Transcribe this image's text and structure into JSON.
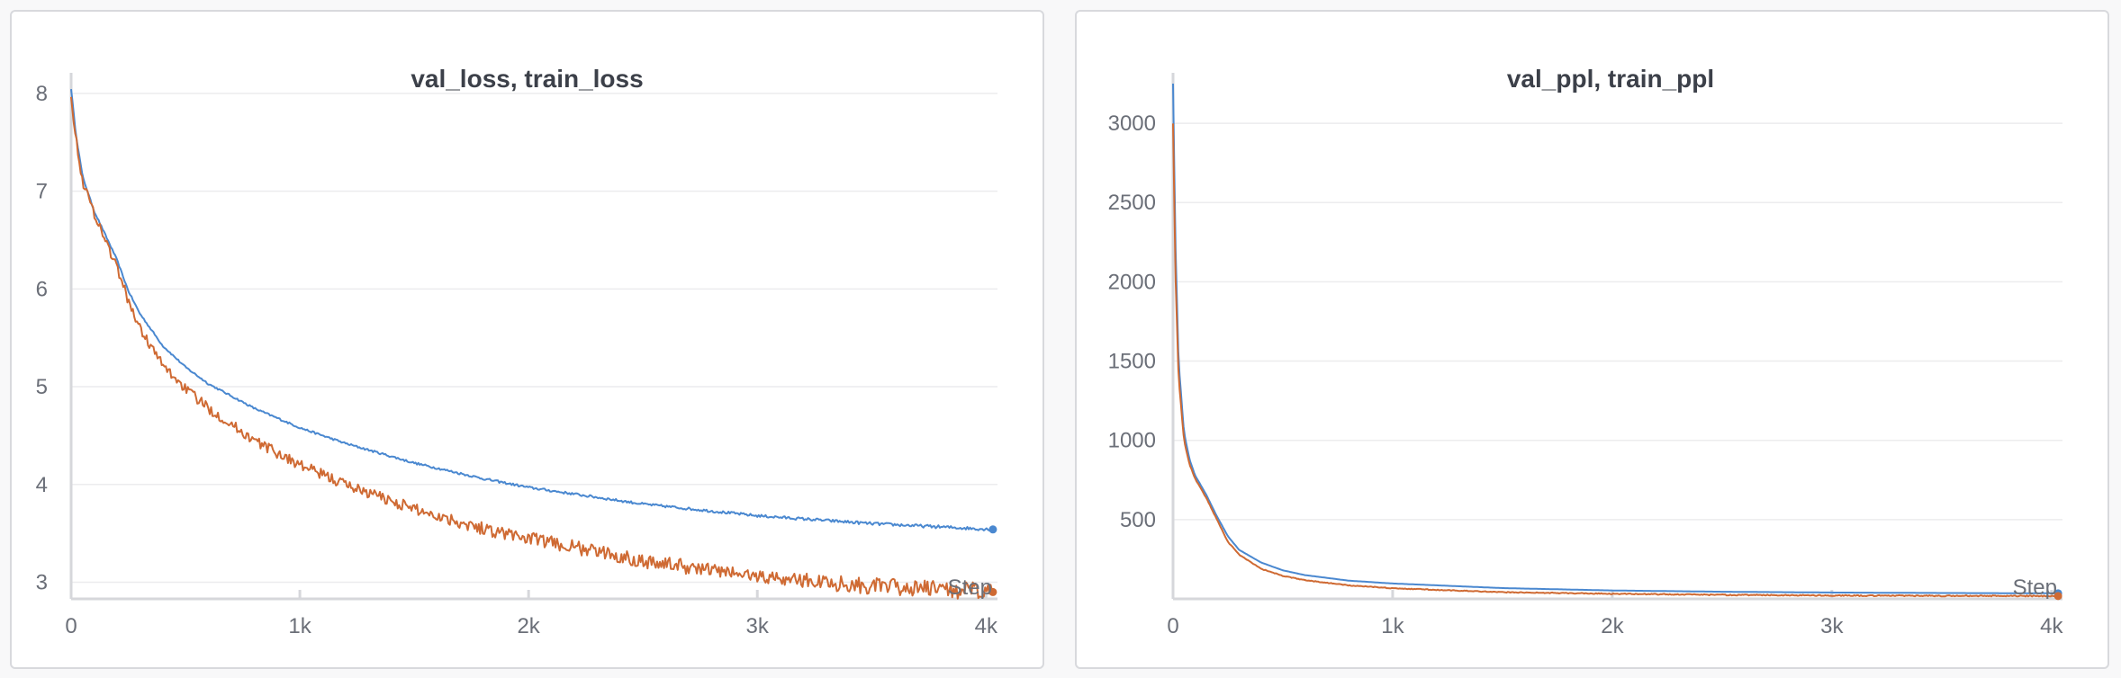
{
  "colors": {
    "val": "#4a88d0",
    "train": "#cf6a33"
  },
  "chart_data": [
    {
      "type": "line",
      "title": "val_loss, train_loss",
      "xlabel": "Step",
      "ylabel": "",
      "xlim": [
        0,
        4050
      ],
      "ylim": [
        2.83,
        8.1
      ],
      "xticks": [
        0,
        1000,
        2000,
        3000,
        4000
      ],
      "xtick_labels": [
        "0",
        "1k",
        "2k",
        "3k",
        "4k"
      ],
      "yticks": [
        3,
        4,
        5,
        6,
        7,
        8
      ],
      "ytick_labels": [
        "3",
        "4",
        "5",
        "6",
        "7",
        "8"
      ],
      "grid": true,
      "legend": "none",
      "series": [
        {
          "name": "val_loss",
          "color": "#4a88d0",
          "noise": 0.008,
          "end_marker": true,
          "x": [
            0,
            20,
            50,
            100,
            150,
            200,
            250,
            300,
            400,
            500,
            600,
            800,
            1000,
            1200,
            1500,
            1800,
            2000,
            2500,
            3000,
            3500,
            4030
          ],
          "y": [
            8.05,
            7.6,
            7.15,
            6.8,
            6.55,
            6.3,
            5.98,
            5.75,
            5.42,
            5.2,
            5.03,
            4.78,
            4.58,
            4.42,
            4.22,
            4.06,
            3.97,
            3.8,
            3.68,
            3.6,
            3.54
          ]
        },
        {
          "name": "train_loss",
          "color": "#cf6a33",
          "noise": 0.045,
          "end_marker": true,
          "x": [
            0,
            20,
            50,
            100,
            150,
            200,
            250,
            300,
            400,
            500,
            600,
            800,
            1000,
            1200,
            1500,
            1800,
            2000,
            2500,
            3000,
            3500,
            4030
          ],
          "y": [
            8.0,
            7.55,
            7.1,
            6.78,
            6.5,
            6.22,
            5.88,
            5.6,
            5.22,
            4.98,
            4.78,
            4.45,
            4.2,
            4.0,
            3.75,
            3.55,
            3.45,
            3.22,
            3.06,
            2.96,
            2.9
          ]
        }
      ]
    },
    {
      "type": "line",
      "title": "val_ppl, train_ppl",
      "xlabel": "Step",
      "ylabel": "",
      "xlim": [
        0,
        4050
      ],
      "ylim": [
        0,
        3250
      ],
      "xticks": [
        0,
        1000,
        2000,
        3000,
        4000
      ],
      "xtick_labels": [
        "0",
        "1k",
        "2k",
        "3k",
        "4k"
      ],
      "yticks": [
        500,
        1000,
        1500,
        2000,
        2500,
        3000
      ],
      "ytick_labels": [
        "500",
        "1000",
        "1500",
        "2000",
        "2500",
        "3000"
      ],
      "grid": true,
      "legend": "none",
      "series": [
        {
          "name": "val_ppl",
          "color": "#4a88d0",
          "noise": 0,
          "end_marker": true,
          "x": [
            0,
            10,
            25,
            50,
            75,
            100,
            150,
            200,
            250,
            300,
            400,
            500,
            600,
            800,
            1000,
            1500,
            2000,
            2500,
            3000,
            3500,
            4030
          ],
          "y": [
            3250,
            2300,
            1500,
            1050,
            880,
            780,
            660,
            520,
            395,
            310,
            230,
            180,
            150,
            115,
            97,
            68,
            53,
            45,
            40,
            37,
            35
          ]
        },
        {
          "name": "train_ppl",
          "color": "#cf6a33",
          "noise": 2,
          "end_marker": true,
          "x": [
            0,
            10,
            25,
            50,
            75,
            100,
            150,
            200,
            250,
            300,
            400,
            500,
            600,
            800,
            1000,
            1500,
            2000,
            2500,
            3000,
            3500,
            4030
          ],
          "y": [
            3000,
            2100,
            1400,
            1000,
            850,
            760,
            640,
            500,
            360,
            280,
            190,
            145,
            118,
            85,
            67,
            42,
            32,
            25,
            21,
            19,
            18
          ]
        }
      ]
    }
  ]
}
